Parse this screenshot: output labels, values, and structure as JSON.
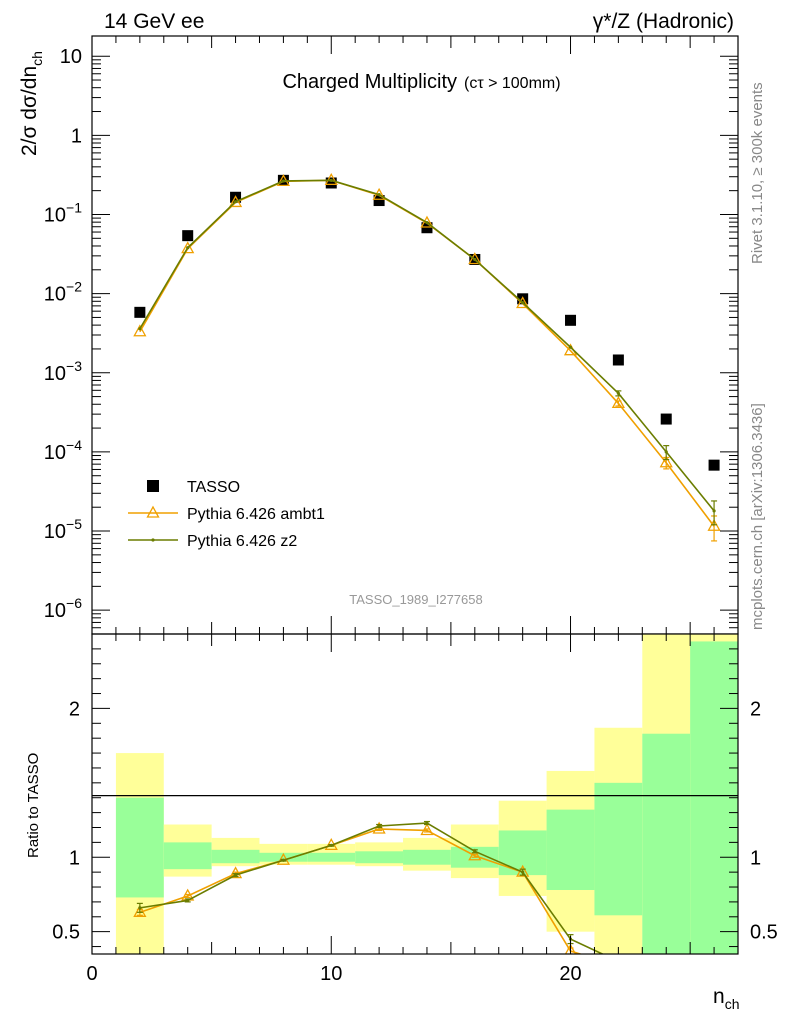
{
  "header": {
    "left": "14 GeV ee",
    "right": "γ*/Z (Hadronic)"
  },
  "side_text": {
    "rivet": "Rivet 3.1.10, ≥ 300k events",
    "mcplots": "mcplots.cern.ch [arXiv:1306.3436]"
  },
  "colors": {
    "tasso": "#000000",
    "ambt1": "#f0a000",
    "z2": "#6b7d00",
    "band_inner": "#99ff99",
    "band_outer": "#ffff99"
  },
  "chart_data": [
    {
      "type": "line",
      "title": "Charged Multiplicity",
      "title_suffix": "(cτ > 100mm)",
      "ylabel_main": "2/σ dσ/dn",
      "ylabel_sub": "ch",
      "watermark": "TASSO_1989_I277658",
      "y_scale": "log",
      "xlim": [
        0,
        27
      ],
      "ylim": [
        5e-07,
        18
      ],
      "y_ticks": [
        {
          "value": 10,
          "label": "10"
        },
        {
          "value": 1,
          "label": "1"
        },
        {
          "value": 0.1,
          "base": "10",
          "exp": "−1"
        },
        {
          "value": 0.01,
          "base": "10",
          "exp": "−2"
        },
        {
          "value": 0.001,
          "base": "10",
          "exp": "−3"
        },
        {
          "value": 0.0001,
          "base": "10",
          "exp": "−4"
        },
        {
          "value": 1e-05,
          "base": "10",
          "exp": "−5"
        },
        {
          "value": 1e-06,
          "base": "10",
          "exp": "−6"
        }
      ],
      "series": [
        {
          "name": "TASSO",
          "marker": "square",
          "x": [
            2,
            4,
            6,
            8,
            10,
            12,
            14,
            16,
            18,
            20,
            22,
            24,
            26
          ],
          "y": [
            0.0058,
            0.054,
            0.165,
            0.27,
            0.25,
            0.15,
            0.068,
            0.027,
            0.0086,
            0.0046,
            0.00145,
            0.00026,
            6.8e-05
          ]
        },
        {
          "name": "Pythia 6.426 ambt1",
          "marker": "triangle",
          "x": [
            2,
            4,
            6,
            8,
            10,
            12,
            14,
            16,
            18,
            20,
            22,
            24,
            26
          ],
          "y": [
            0.0033,
            0.037,
            0.142,
            0.262,
            0.27,
            0.175,
            0.078,
            0.027,
            0.0075,
            0.0019,
            0.00041,
            7.3e-05,
            1.15e-05
          ],
          "err": [
            0,
            0,
            0,
            0,
            0,
            0,
            0,
            0,
            0,
            0,
            3e-05,
            1.2e-05,
            4e-06
          ]
        },
        {
          "name": "Pythia 6.426 z2",
          "marker": "dot",
          "x": [
            2,
            4,
            6,
            8,
            10,
            12,
            14,
            16,
            18,
            20,
            22,
            24,
            26
          ],
          "y": [
            0.0036,
            0.038,
            0.145,
            0.265,
            0.27,
            0.178,
            0.079,
            0.027,
            0.0077,
            0.0021,
            0.00055,
            0.0001,
            1.8e-05
          ],
          "err": [
            0,
            0,
            0,
            0,
            0,
            0,
            0,
            0,
            0,
            0,
            4e-05,
            2e-05,
            6e-06
          ]
        }
      ]
    },
    {
      "type": "line",
      "ylabel": "Ratio to TASSO",
      "xlabel_main": "n",
      "xlabel_sub": "ch",
      "xlim": [
        0,
        27
      ],
      "ylim": [
        0.35,
        2.5
      ],
      "x_ticks": [
        0,
        10,
        20
      ],
      "y_ticks": [
        {
          "value": 0.5,
          "label": "0.5"
        },
        {
          "value": 1,
          "label": "1"
        },
        {
          "value": 2,
          "label": "2"
        }
      ],
      "bands": [
        {
          "x0": 1,
          "x1": 3,
          "inner": [
            0.73,
            1.4
          ],
          "outer": [
            0.35,
            1.7
          ]
        },
        {
          "x0": 3,
          "x1": 5,
          "inner": [
            0.92,
            1.1
          ],
          "outer": [
            0.87,
            1.22
          ]
        },
        {
          "x0": 5,
          "x1": 7,
          "inner": [
            0.96,
            1.05
          ],
          "outer": [
            0.94,
            1.13
          ]
        },
        {
          "x0": 7,
          "x1": 9,
          "inner": [
            0.97,
            1.03
          ],
          "outer": [
            0.95,
            1.09
          ]
        },
        {
          "x0": 9,
          "x1": 11,
          "inner": [
            0.97,
            1.03
          ],
          "outer": [
            0.95,
            1.09
          ]
        },
        {
          "x0": 11,
          "x1": 13,
          "inner": [
            0.96,
            1.04
          ],
          "outer": [
            0.94,
            1.1
          ]
        },
        {
          "x0": 13,
          "x1": 15,
          "inner": [
            0.95,
            1.05
          ],
          "outer": [
            0.91,
            1.13
          ]
        },
        {
          "x0": 15,
          "x1": 17,
          "inner": [
            0.93,
            1.07
          ],
          "outer": [
            0.86,
            1.22
          ]
        },
        {
          "x0": 17,
          "x1": 19,
          "inner": [
            0.88,
            1.18
          ],
          "outer": [
            0.74,
            1.38
          ]
        },
        {
          "x0": 19,
          "x1": 21,
          "inner": [
            0.78,
            1.32
          ],
          "outer": [
            0.5,
            1.58
          ]
        },
        {
          "x0": 21,
          "x1": 23,
          "inner": [
            0.61,
            1.5
          ],
          "outer": [
            0.35,
            1.87
          ]
        },
        {
          "x0": 23,
          "x1": 25,
          "inner": [
            0.35,
            1.83
          ],
          "outer": [
            0.35,
            2.5
          ]
        },
        {
          "x0": 25,
          "x1": 27,
          "inner": [
            0.35,
            2.45
          ],
          "outer": [
            0.35,
            2.5
          ]
        }
      ],
      "series": [
        {
          "name": "Pythia 6.426 ambt1",
          "marker": "triangle",
          "x": [
            2,
            4,
            6,
            8,
            10,
            12,
            14,
            16,
            18,
            20,
            22
          ],
          "y": [
            0.63,
            0.74,
            0.89,
            0.98,
            1.08,
            1.19,
            1.18,
            1.01,
            0.9,
            0.37,
            0.27
          ],
          "err": [
            0.02,
            0.01,
            0.01,
            0.005,
            0.005,
            0.01,
            0.01,
            0.01,
            0.02,
            0.02,
            0.02
          ]
        },
        {
          "name": "Pythia 6.426 z2",
          "marker": "dot",
          "x": [
            2,
            4,
            6,
            8,
            10,
            12,
            14,
            16,
            18,
            20,
            22
          ],
          "y": [
            0.66,
            0.71,
            0.88,
            0.98,
            1.08,
            1.21,
            1.23,
            1.04,
            0.9,
            0.45,
            0.3
          ],
          "err": [
            0.03,
            0.01,
            0.01,
            0.005,
            0.005,
            0.01,
            0.01,
            0.01,
            0.02,
            0.03,
            0.03
          ]
        }
      ]
    }
  ]
}
